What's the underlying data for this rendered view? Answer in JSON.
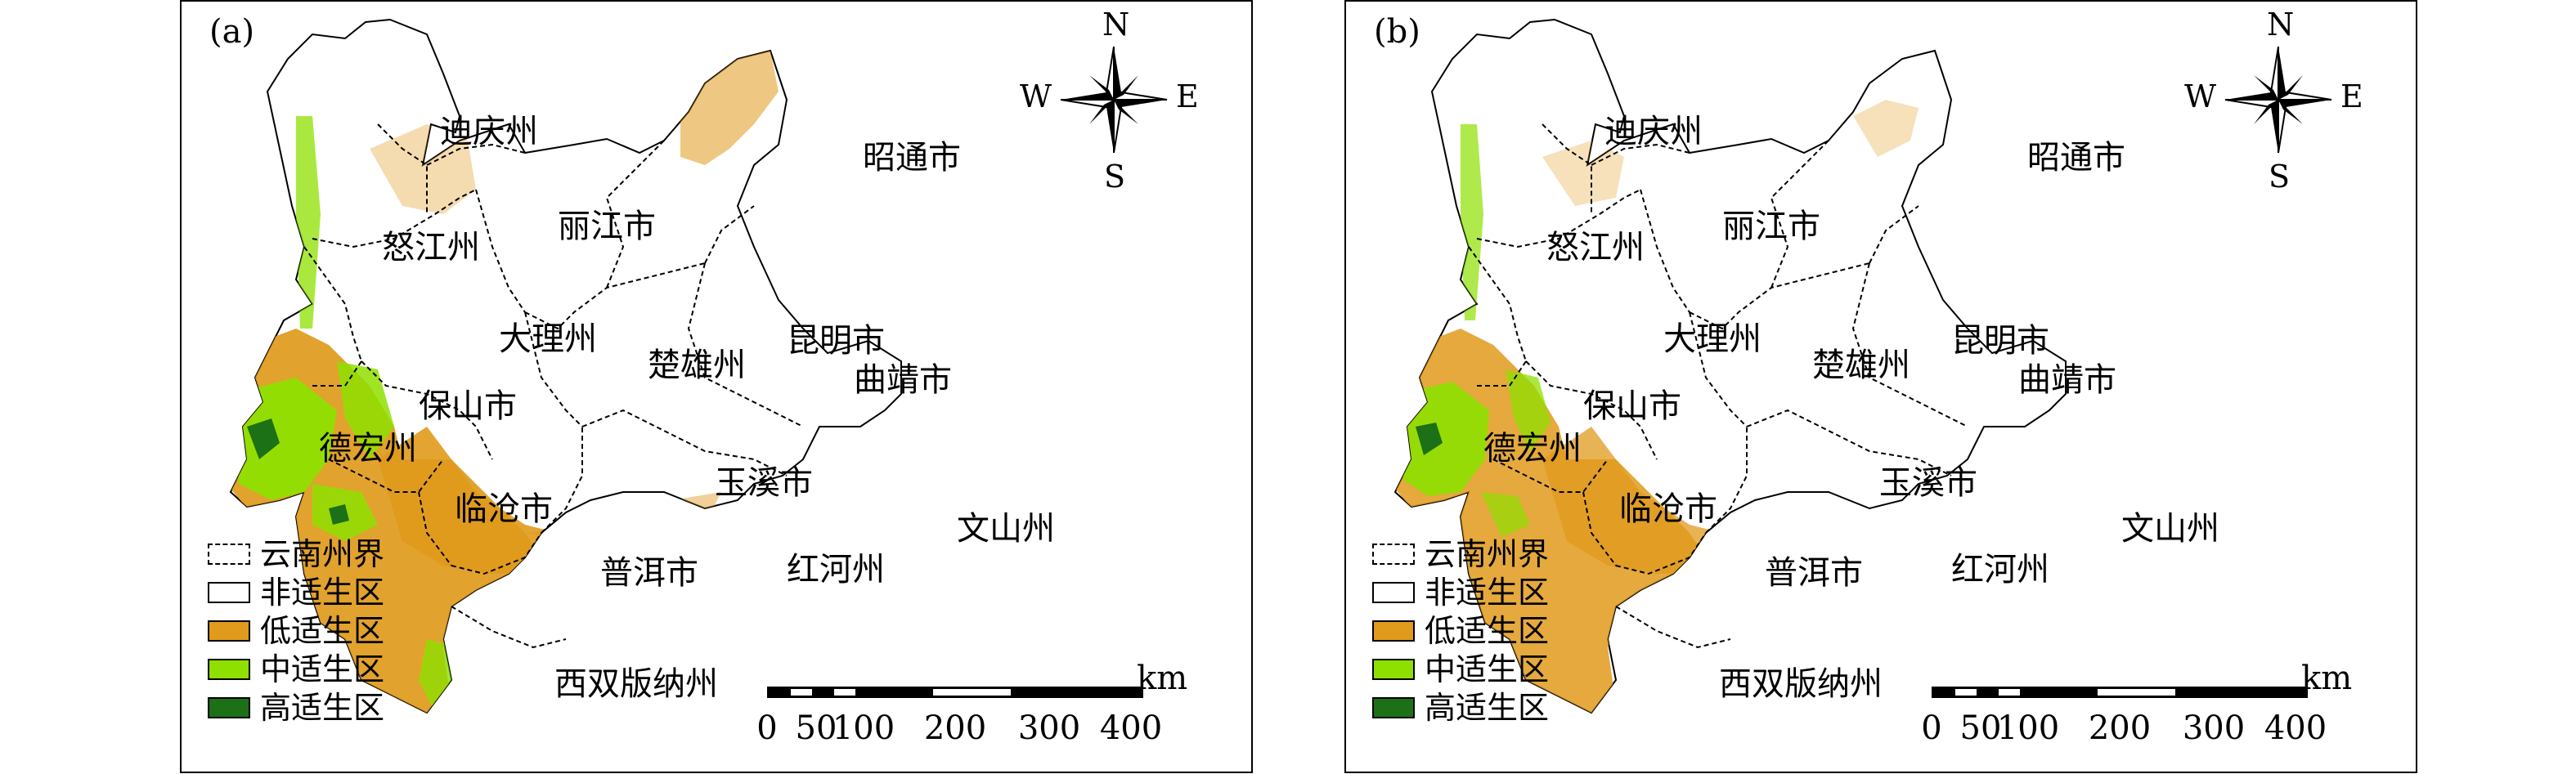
{
  "colors": {
    "unsuitable": "#ffffff",
    "low": "#e09a1c",
    "moderate": "#8ee000",
    "high": "#1c7016",
    "boundary": "#000000"
  },
  "compass": {
    "n": "N",
    "s": "S",
    "e": "E",
    "w": "W"
  },
  "scale": {
    "unit": "km",
    "ticks": [
      "0",
      "50",
      "100",
      "200",
      "300",
      "400"
    ]
  },
  "legend": [
    {
      "label": "云南州界",
      "type": "boundary"
    },
    {
      "label": "非适生区",
      "type": "unsuitable"
    },
    {
      "label": "低适生区",
      "type": "low"
    },
    {
      "label": "中适生区",
      "type": "moderate"
    },
    {
      "label": "高适生区",
      "type": "high"
    }
  ],
  "panels": [
    {
      "label": "(a)",
      "regions": {
        "diqing": "迪庆州",
        "nujiang": "怒江州",
        "lijiang": "丽江市",
        "zhaotong": "昭通市",
        "dali": "大理州",
        "chuxiong": "楚雄州",
        "kunming": "昆明市",
        "qujing": "曲靖市",
        "baoshan": "保山市",
        "dehong": "德宏州",
        "lincang": "临沧市",
        "yuxi": "玉溪市",
        "wenshan": "文山州",
        "puer": "普洱市",
        "honghe": "红河州",
        "xishuangbanna": "西双版纳州"
      }
    },
    {
      "label": "(b)",
      "regions": {
        "diqing": "迪庆州",
        "nujiang": "怒江州",
        "lijiang": "丽江市",
        "zhaotong": "昭通市",
        "dali": "大理州",
        "chuxiong": "楚雄州",
        "kunming": "昆明市",
        "qujing": "曲靖市",
        "baoshan": "保山市",
        "dehong": "德宏州",
        "lincang": "临沧市",
        "yuxi": "玉溪市",
        "wenshan": "文山州",
        "puer": "普洱市",
        "honghe": "红河州",
        "xishuangbanna": "西双版纳州"
      }
    }
  ]
}
